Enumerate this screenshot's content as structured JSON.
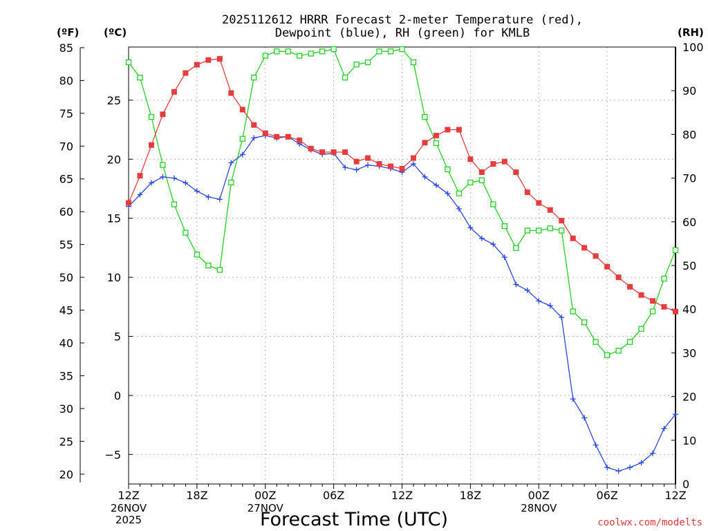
{
  "chart_data": {
    "type": "line",
    "title_line1": "2025112612 HRRR Forecast 2-meter Temperature (red),",
    "title_line2": "Dewpoint (blue), RH (green) for KMLB",
    "xlabel": "Forecast Time (UTC)",
    "unit_f": "(ºF)",
    "unit_c": "(ºC)",
    "unit_rh": "(RH)",
    "credit": "coolwx.com/modelts",
    "x_ticks": [
      {
        "hour": 0,
        "label": "12Z",
        "date": "26NOV",
        "year": "2025"
      },
      {
        "hour": 6,
        "label": "18Z",
        "date": "",
        "year": ""
      },
      {
        "hour": 12,
        "label": "00Z",
        "date": "27NOV",
        "year": ""
      },
      {
        "hour": 18,
        "label": "06Z",
        "date": "",
        "year": ""
      },
      {
        "hour": 24,
        "label": "12Z",
        "date": "",
        "year": ""
      },
      {
        "hour": 30,
        "label": "18Z",
        "date": "",
        "year": ""
      },
      {
        "hour": 36,
        "label": "00Z",
        "date": "28NOV",
        "year": ""
      },
      {
        "hour": 42,
        "label": "06Z",
        "date": "",
        "year": ""
      },
      {
        "hour": 48,
        "label": "12Z",
        "date": "",
        "year": ""
      }
    ],
    "x_range_hours": [
      0,
      48
    ],
    "y_celsius_range": [
      -7.5,
      29.5
    ],
    "y_celsius_ticks": [
      -5,
      0,
      5,
      10,
      15,
      20,
      25
    ],
    "y_fahrenheit_ticks": [
      20,
      25,
      30,
      35,
      40,
      45,
      50,
      55,
      60,
      65,
      70,
      75,
      80,
      85
    ],
    "y_rh_range": [
      0,
      100
    ],
    "y_rh_ticks": [
      0,
      10,
      20,
      30,
      40,
      50,
      60,
      70,
      80,
      90,
      100
    ],
    "grid": true,
    "temperature_c": [
      16.3,
      18.6,
      21.2,
      23.8,
      25.7,
      27.3,
      28.0,
      28.4,
      28.5,
      25.6,
      24.2,
      22.9,
      22.2,
      21.9,
      21.9,
      21.6,
      20.9,
      20.6,
      20.6,
      20.6,
      19.8,
      20.1,
      19.6,
      19.4,
      19.2,
      20.1,
      21.4,
      22.0,
      22.5,
      22.5,
      20.0,
      18.9,
      19.6,
      19.8,
      18.9,
      17.2,
      16.3,
      15.7,
      14.8,
      13.3,
      12.5,
      11.8,
      10.9,
      10.0,
      9.2,
      8.5,
      8.0,
      7.5,
      7.1
    ],
    "dewpoint_c": [
      16.0,
      17.0,
      18.0,
      18.5,
      18.4,
      18.0,
      17.3,
      16.8,
      16.6,
      19.7,
      20.4,
      21.8,
      22.0,
      21.8,
      21.9,
      21.3,
      20.8,
      20.4,
      20.5,
      19.3,
      19.1,
      19.5,
      19.4,
      19.2,
      18.9,
      19.6,
      18.5,
      17.8,
      17.1,
      15.8,
      14.2,
      13.3,
      12.8,
      11.7,
      9.4,
      8.9,
      8.0,
      7.6,
      6.6,
      -0.3,
      -1.9,
      -4.2,
      -6.1,
      -6.4,
      -6.1,
      -5.7,
      -4.9,
      -2.8,
      -1.6
    ],
    "rh_percent": [
      96.5,
      93.0,
      84.0,
      73.0,
      64.0,
      57.5,
      52.5,
      50.0,
      49.0,
      69.0,
      79.0,
      93.0,
      98.0,
      99.0,
      99.0,
      98.0,
      98.5,
      99.0,
      99.5,
      93.0,
      96.0,
      96.5,
      99.0,
      99.0,
      99.5,
      96.5,
      84.0,
      78.0,
      72.0,
      66.5,
      69.0,
      69.5,
      64.0,
      59.0,
      54.0,
      58.0,
      58.0,
      58.5,
      58.0,
      39.5,
      37.0,
      32.5,
      29.5,
      30.5,
      32.5,
      35.5,
      39.5,
      47.0,
      53.5
    ]
  }
}
